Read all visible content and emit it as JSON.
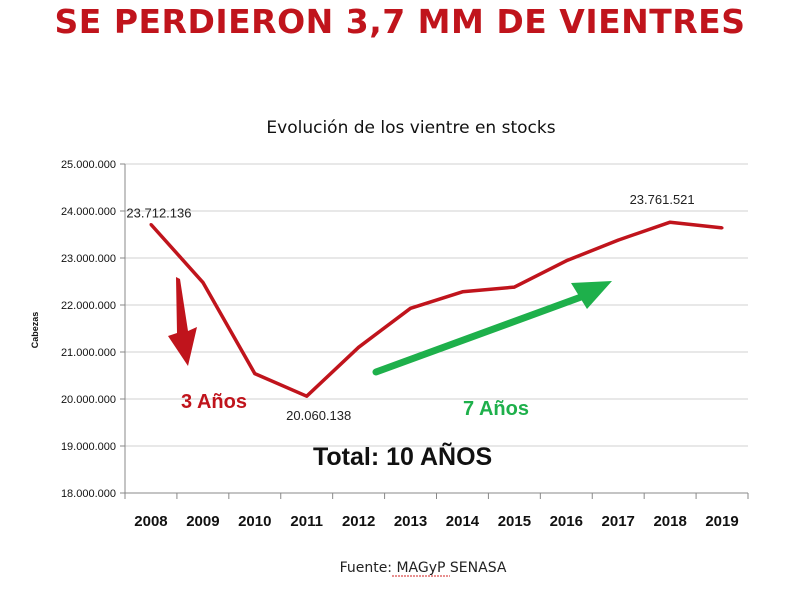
{
  "headline": "SE PERDIERON 3,7 MM DE VIENTRES",
  "source": "Fuente: MAGyP SENASA",
  "colors": {
    "headline": "#c0141c",
    "series": "#c0141c",
    "arrow_down": "#c0141c",
    "arrow_up": "#1eb04b",
    "grid": "#d0d0d0"
  },
  "annotations": {
    "decline": "3 Años",
    "recovery": "7 Años",
    "total": "Total: 10 AÑOS"
  },
  "chart_data": {
    "type": "line",
    "title": "Evolución de los vientre en stocks",
    "xlabel": "",
    "ylabel": "Cabezas",
    "categories": [
      "2008",
      "2009",
      "2010",
      "2011",
      "2012",
      "2013",
      "2014",
      "2015",
      "2016",
      "2017",
      "2018",
      "2019"
    ],
    "series": [
      {
        "values": [
          23712136,
          22480000,
          20540000,
          20060138,
          21100000,
          21930000,
          22280000,
          22380000,
          22940000,
          23380000,
          23761521,
          23640000
        ]
      }
    ],
    "data_labels": [
      {
        "index": 0,
        "text": "23.712.136"
      },
      {
        "index": 3,
        "text": "20.060.138"
      },
      {
        "index": 10,
        "text": "23.761.521"
      }
    ],
    "ylim": [
      18000000,
      25000000
    ],
    "yticks": [
      {
        "value": 18000000,
        "label": "18.000.000"
      },
      {
        "value": 19000000,
        "label": "19.000.000"
      },
      {
        "value": 20000000,
        "label": "20.000.000"
      },
      {
        "value": 21000000,
        "label": "21.000.000"
      },
      {
        "value": 22000000,
        "label": "22.000.000"
      },
      {
        "value": 23000000,
        "label": "23.000.000"
      },
      {
        "value": 24000000,
        "label": "24.000.000"
      },
      {
        "value": 25000000,
        "label": "25.000.000"
      }
    ],
    "grid": true,
    "legend": "none"
  }
}
